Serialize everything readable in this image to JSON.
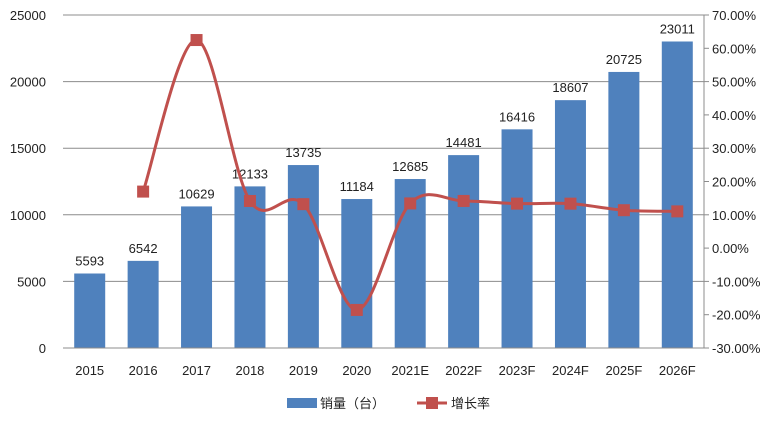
{
  "chart_data": {
    "type": "bar+line",
    "categories": [
      "2015",
      "2016",
      "2017",
      "2018",
      "2019",
      "2020",
      "2021E",
      "2022F",
      "2023F",
      "2024F",
      "2025F",
      "2026F"
    ],
    "series": [
      {
        "name": "销量（台）",
        "type": "bar",
        "axis": "left",
        "color": "#4F81BD",
        "values": [
          5593,
          6542,
          10629,
          12133,
          13735,
          11184,
          12685,
          14481,
          16416,
          18607,
          20725,
          23011
        ]
      },
      {
        "name": "增长率",
        "type": "line",
        "axis": "right",
        "color": "#C0504D",
        "values": [
          null,
          16.97,
          62.48,
          14.15,
          13.2,
          -18.57,
          13.42,
          14.16,
          13.36,
          13.35,
          11.38,
          11.03
        ]
      }
    ],
    "left_axis": {
      "ylim": [
        0,
        25000
      ],
      "ticks": [
        "0",
        "5000",
        "10000",
        "15000",
        "20000",
        "25000"
      ]
    },
    "right_axis": {
      "ylim": [
        -30,
        70
      ],
      "ticks": [
        "-30.00%",
        "-20.00%",
        "-10.00%",
        "0.00%",
        "10.00%",
        "20.00%",
        "30.00%",
        "40.00%",
        "50.00%",
        "60.00%",
        "70.00%"
      ]
    },
    "grid": "horizontal",
    "legend": "bottom"
  }
}
